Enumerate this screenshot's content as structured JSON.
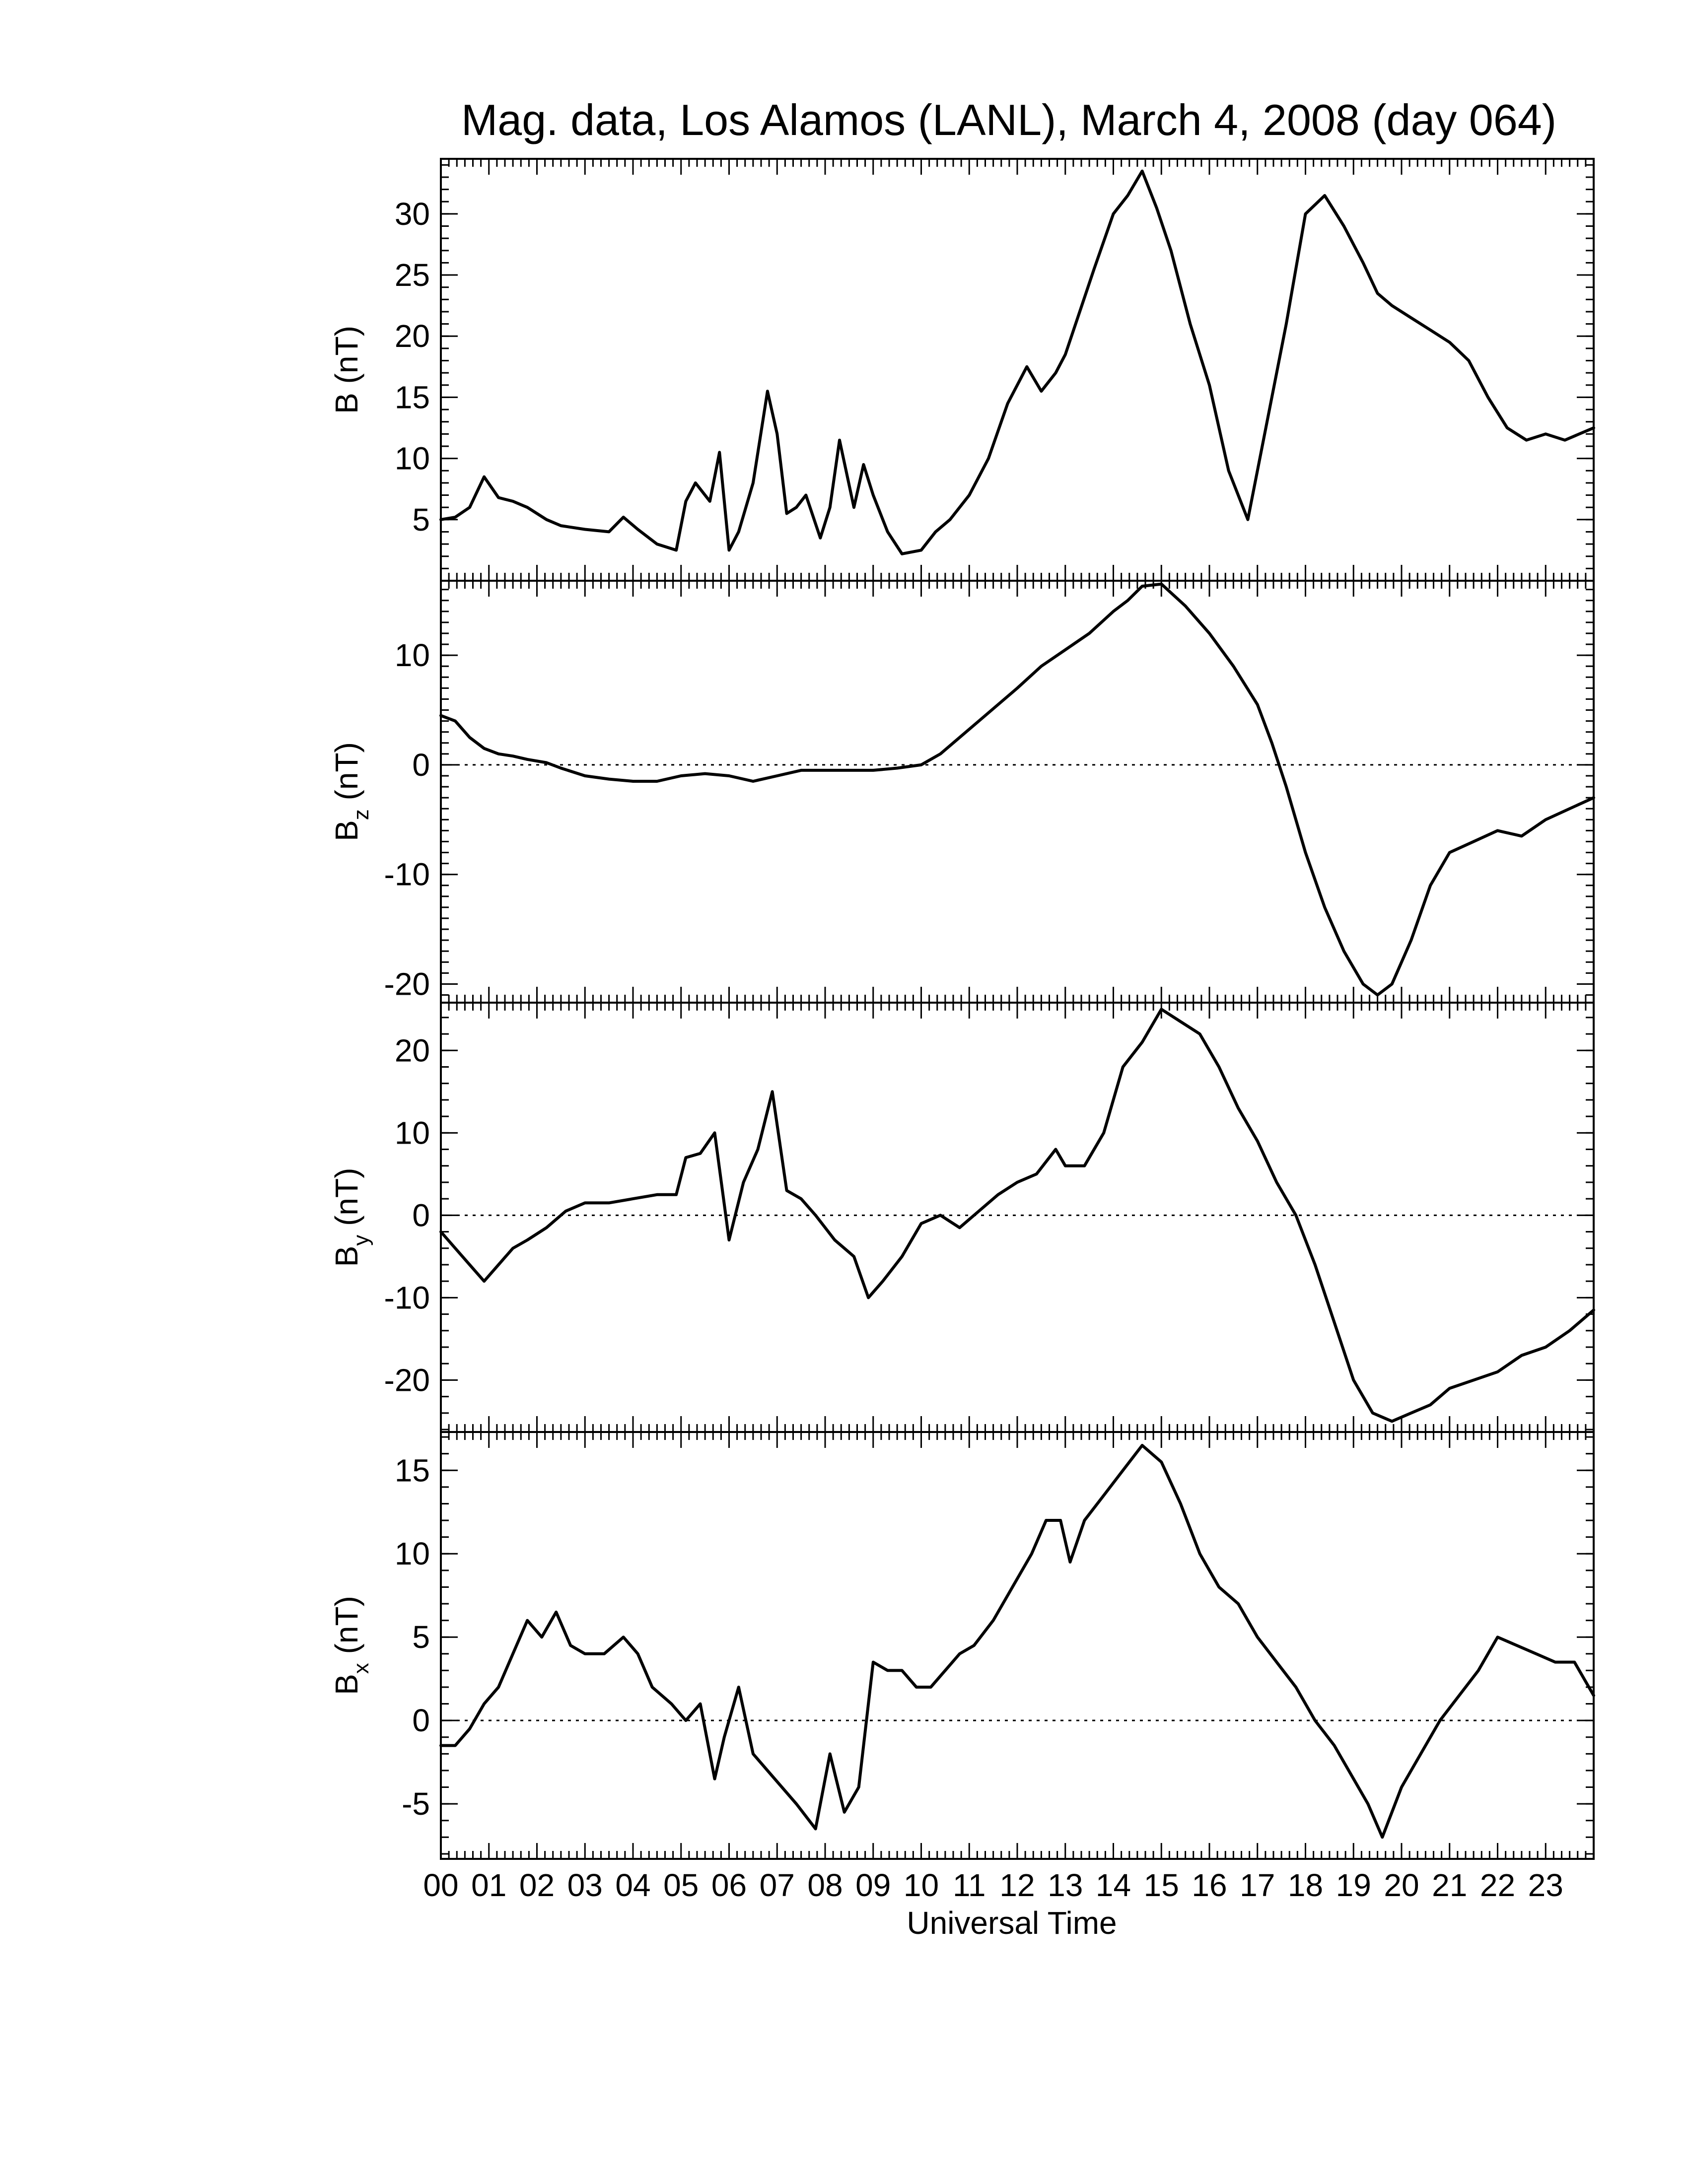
{
  "chart_data": {
    "type": "line",
    "title": "Mag. data, Los Alamos (LANL), March 4, 2008 (day 064)",
    "xlabel": "Universal Time",
    "x_ticks": [
      "00",
      "01",
      "02",
      "03",
      "04",
      "05",
      "06",
      "07",
      "08",
      "09",
      "10",
      "11",
      "12",
      "13",
      "14",
      "15",
      "16",
      "17",
      "18",
      "19",
      "20",
      "21",
      "22",
      "23"
    ],
    "xlim": [
      0,
      24
    ],
    "grid": false,
    "panels": [
      {
        "id": "B",
        "ylabel_main": "B",
        "ylabel_sub": "",
        "ylabel_unit": "(nT)",
        "ylim": [
          0,
          34.5
        ],
        "yticks": [
          5,
          10,
          15,
          20,
          25,
          30
        ],
        "zero_line": false,
        "x": [
          0,
          0.3,
          0.6,
          0.9,
          1.2,
          1.5,
          1.8,
          2.2,
          2.5,
          3.0,
          3.5,
          3.8,
          4.1,
          4.5,
          4.9,
          5.1,
          5.3,
          5.6,
          5.8,
          6.0,
          6.2,
          6.5,
          6.8,
          7.0,
          7.2,
          7.4,
          7.6,
          7.9,
          8.1,
          8.3,
          8.6,
          8.8,
          9.0,
          9.3,
          9.6,
          10.0,
          10.3,
          10.6,
          11.0,
          11.4,
          11.8,
          12.2,
          12.5,
          12.8,
          13.0,
          13.3,
          13.6,
          14.0,
          14.3,
          14.6,
          14.9,
          15.2,
          15.6,
          16.0,
          16.4,
          16.8,
          17.2,
          17.6,
          18.0,
          18.4,
          18.8,
          19.2,
          19.5,
          19.8,
          20.2,
          20.6,
          21.0,
          21.4,
          21.8,
          22.2,
          22.6,
          23.0,
          23.4,
          23.7,
          24.0
        ],
        "values": [
          5,
          5.2,
          6,
          8.5,
          6.8,
          6.5,
          6,
          5,
          4.5,
          4.2,
          4,
          5.2,
          4.2,
          3,
          2.5,
          6.5,
          8,
          6.5,
          10.5,
          2.5,
          4,
          8,
          15.5,
          12,
          5.5,
          6,
          7,
          3.5,
          6,
          11.5,
          6,
          9.5,
          7,
          4,
          2.2,
          2.5,
          4,
          5,
          7,
          10,
          14.5,
          17.5,
          15.5,
          17,
          18.5,
          22,
          25.5,
          30,
          31.5,
          33.5,
          30.5,
          27,
          21,
          16,
          9,
          5,
          13,
          21,
          30,
          31.5,
          29,
          26,
          23.5,
          22.5,
          21.5,
          20.5,
          19.5,
          18,
          15,
          12.5,
          11.5,
          12,
          11.5,
          12,
          12.5
        ]
      },
      {
        "id": "Bz",
        "ylabel_main": "B",
        "ylabel_sub": "z",
        "ylabel_unit": "(nT)",
        "ylim": [
          -21.7,
          16.8
        ],
        "yticks": [
          -20,
          -10,
          0,
          10
        ],
        "zero_line": true,
        "x": [
          0,
          0.3,
          0.6,
          0.9,
          1.2,
          1.5,
          1.8,
          2.2,
          2.5,
          3.0,
          3.5,
          4.0,
          4.5,
          5.0,
          5.5,
          6.0,
          6.5,
          7.0,
          7.5,
          8.0,
          8.5,
          9.0,
          9.5,
          10.0,
          10.4,
          10.8,
          11.2,
          11.6,
          12.0,
          12.5,
          13.0,
          13.5,
          14.0,
          14.3,
          14.6,
          15.0,
          15.5,
          16.0,
          16.5,
          17.0,
          17.3,
          17.6,
          18.0,
          18.4,
          18.8,
          19.2,
          19.5,
          19.8,
          20.2,
          20.6,
          21.0,
          21.5,
          22.0,
          22.5,
          23.0,
          23.5,
          24.0
        ],
        "values": [
          4.5,
          4,
          2.5,
          1.5,
          1,
          0.8,
          0.5,
          0.2,
          -0.3,
          -1,
          -1.3,
          -1.5,
          -1.5,
          -1,
          -0.8,
          -1,
          -1.5,
          -1,
          -0.5,
          -0.5,
          -0.5,
          -0.5,
          -0.3,
          0,
          1,
          2.5,
          4,
          5.5,
          7,
          9,
          10.5,
          12,
          14,
          15,
          16.3,
          16.5,
          14.5,
          12,
          9,
          5.5,
          2,
          -2,
          -8,
          -13,
          -17,
          -20,
          -21,
          -20,
          -16,
          -11,
          -8,
          -7,
          -6,
          -6.5,
          -5,
          -4,
          -3
        ]
      },
      {
        "id": "By",
        "ylabel_main": "B",
        "ylabel_sub": "y",
        "ylabel_unit": "(nT)",
        "ylim": [
          -26.3,
          25.8
        ],
        "yticks": [
          -20,
          -10,
          0,
          10,
          20
        ],
        "zero_line": true,
        "x": [
          0,
          0.3,
          0.6,
          0.9,
          1.2,
          1.5,
          1.8,
          2.2,
          2.6,
          3.0,
          3.5,
          4.0,
          4.5,
          4.9,
          5.1,
          5.4,
          5.7,
          6.0,
          6.3,
          6.6,
          6.9,
          7.2,
          7.5,
          7.8,
          8.2,
          8.6,
          8.9,
          9.2,
          9.6,
          10.0,
          10.4,
          10.8,
          11.2,
          11.6,
          12.0,
          12.4,
          12.8,
          13.0,
          13.4,
          13.8,
          14.2,
          14.6,
          15.0,
          15.4,
          15.8,
          16.2,
          16.6,
          17.0,
          17.4,
          17.8,
          18.2,
          18.6,
          19.0,
          19.4,
          19.8,
          20.2,
          20.6,
          21.0,
          21.5,
          22.0,
          22.5,
          23.0,
          23.5,
          24.0
        ],
        "values": [
          -2,
          -4,
          -6,
          -8,
          -6,
          -4,
          -3,
          -1.5,
          0.5,
          1.5,
          1.5,
          2,
          2.5,
          2.5,
          7,
          7.5,
          10,
          -3,
          4,
          8,
          15,
          3,
          2,
          0,
          -3,
          -5,
          -10,
          -8,
          -5,
          -1,
          0,
          -1.5,
          0.5,
          2.5,
          4,
          5,
          8,
          6,
          6,
          10,
          18,
          21,
          25,
          23.5,
          22,
          18,
          13,
          9,
          4,
          0,
          -6,
          -13,
          -20,
          -24,
          -25,
          -24,
          -23,
          -21,
          -20,
          -19,
          -17,
          -16,
          -14,
          -11.5
        ]
      },
      {
        "id": "Bx",
        "ylabel_main": "B",
        "ylabel_sub": "x",
        "ylabel_unit": "(nT)",
        "ylim": [
          -8.3,
          17.3
        ],
        "yticks": [
          -5,
          0,
          5,
          10,
          15
        ],
        "zero_line": true,
        "x": [
          0,
          0.3,
          0.6,
          0.9,
          1.2,
          1.5,
          1.8,
          2.1,
          2.4,
          2.7,
          3.0,
          3.4,
          3.8,
          4.1,
          4.4,
          4.8,
          5.1,
          5.4,
          5.7,
          5.9,
          6.2,
          6.5,
          6.8,
          7.1,
          7.4,
          7.8,
          8.1,
          8.4,
          8.7,
          9.0,
          9.3,
          9.6,
          9.9,
          10.2,
          10.5,
          10.8,
          11.1,
          11.5,
          11.9,
          12.3,
          12.6,
          12.9,
          13.1,
          13.4,
          13.8,
          14.2,
          14.6,
          15.0,
          15.4,
          15.8,
          16.2,
          16.6,
          17.0,
          17.4,
          17.8,
          18.2,
          18.6,
          19.0,
          19.3,
          19.6,
          20.0,
          20.4,
          20.8,
          21.2,
          21.6,
          22.0,
          22.4,
          22.8,
          23.2,
          23.6,
          24.0
        ],
        "values": [
          -1.5,
          -1.5,
          -0.5,
          1,
          2,
          4,
          6,
          5,
          6.5,
          4.5,
          4,
          4,
          5,
          4,
          2,
          1,
          0,
          1,
          -3.5,
          -1,
          2,
          -2,
          -3,
          -4,
          -5,
          -6.5,
          -2,
          -5.5,
          -4,
          3.5,
          3,
          3,
          2,
          2,
          3,
          4,
          4.5,
          6,
          8,
          10,
          12,
          12,
          9.5,
          12,
          13.5,
          15,
          16.5,
          15.5,
          13,
          10,
          8,
          7,
          5,
          3.5,
          2,
          0,
          -1.5,
          -3.5,
          -5,
          -7,
          -4,
          -2,
          0,
          1.5,
          3,
          5,
          4.5,
          4,
          3.5,
          3.5,
          1.5
        ]
      }
    ]
  }
}
